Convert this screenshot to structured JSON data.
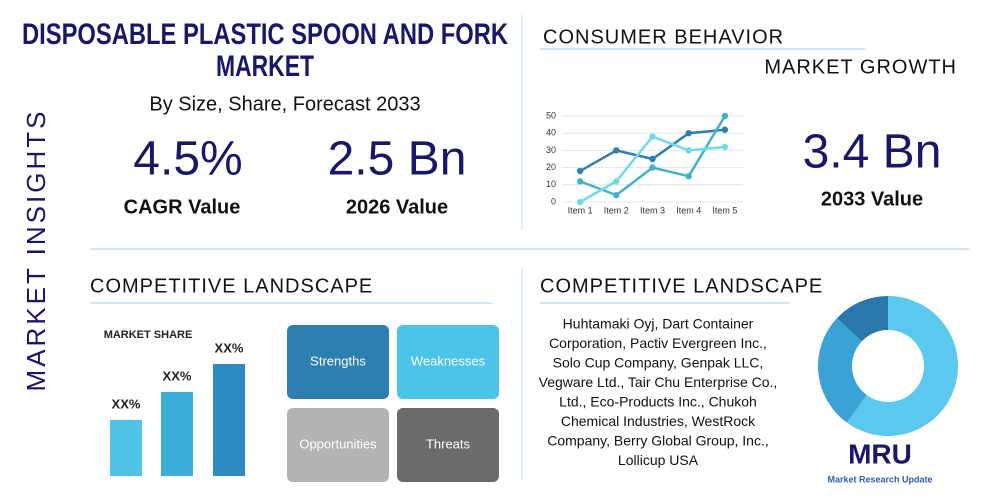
{
  "side_label": "MARKET INSIGHTS",
  "header": {
    "title_line1": "DISPOSABLE PLASTIC SPOON AND FORK",
    "title_line2": "MARKET",
    "subtitle": "By Size, Share, Forecast 2033"
  },
  "stats": [
    {
      "value": "4.5%",
      "label": "CAGR Value"
    },
    {
      "value": "2.5 Bn",
      "label": "2026 Value"
    }
  ],
  "consumer_behavior": {
    "title": "CONSUMER BEHAVIOR",
    "subtitle": "MARKET GROWTH",
    "chart_data": {
      "type": "line",
      "categories": [
        "Item 1",
        "Item 2",
        "Item 3",
        "Item 4",
        "Item 5"
      ],
      "series": [
        {
          "color": "#2b7fb2",
          "values": [
            18,
            30,
            25,
            40,
            42
          ]
        },
        {
          "color": "#3fb3c9",
          "values": [
            12,
            4,
            20,
            15,
            50
          ]
        },
        {
          "color": "#6fdbe8",
          "values": [
            0,
            12,
            38,
            30,
            32
          ]
        }
      ],
      "ylim": [
        0,
        50
      ],
      "yticks": [
        0,
        10,
        20,
        30,
        40,
        50
      ],
      "grid": true
    }
  },
  "forecast": {
    "value": "3.4 Bn",
    "label": "2033 Value"
  },
  "competitive_left": {
    "title": "COMPETITIVE LANDSCAPE",
    "chart_data": {
      "type": "bar",
      "title": "MARKET SHARE",
      "values": [
        20,
        30,
        40
      ],
      "value_labels": [
        "XX%",
        "XX%",
        "XX%"
      ],
      "colors": [
        "#4fc3e3",
        "#3cadd9",
        "#2c8bc0"
      ]
    },
    "swot": [
      "Strengths",
      "Weaknesses",
      "Opportunities",
      "Threats"
    ]
  },
  "competitive_right": {
    "title": "COMPETITIVE LANDSCAPE",
    "companies_lines": [
      "Huhtamaki Oyj, Dart Container",
      "Corporation, Pactiv Evergreen Inc.,",
      "Solo Cup Company, Genpak LLC,",
      "Vegware Ltd., Tair Chu Enterprise Co.,",
      "Ltd., Eco-Products Inc., Chukoh",
      "Chemical Industries, WestRock",
      "Company, Berry Global Group, Inc.,",
      "Lollicup USA"
    ],
    "chart_data": {
      "type": "pie",
      "donut": true,
      "values": [
        60,
        27,
        13
      ],
      "colors": [
        "#5ac8ef",
        "#3aa2d4",
        "#2a77ad"
      ]
    }
  },
  "logo": {
    "mark": "MRU",
    "name": "Market Research Update"
  }
}
